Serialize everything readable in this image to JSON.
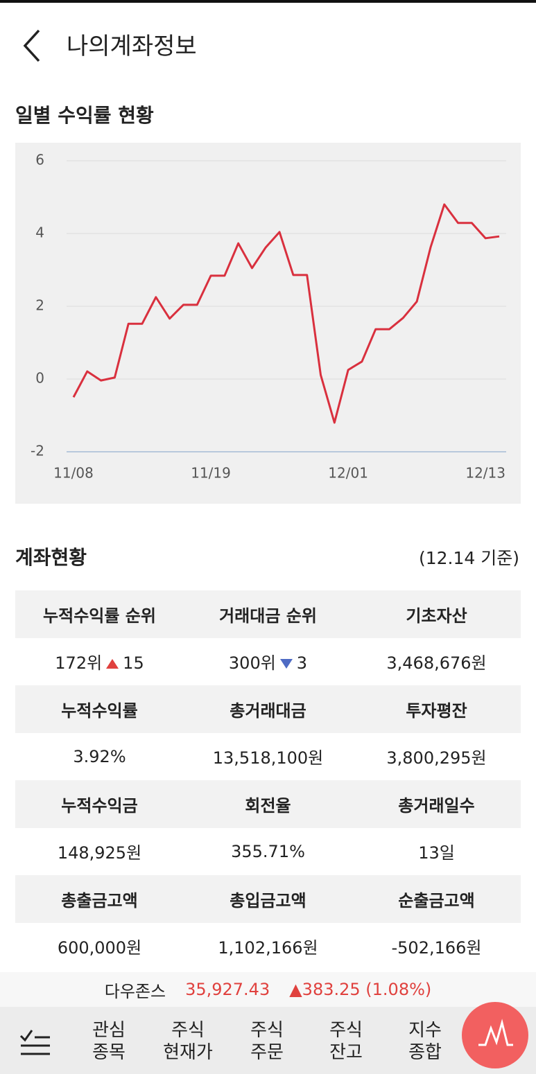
{
  "header": {
    "title": "나의계좌정보"
  },
  "chart_data": {
    "type": "line",
    "title": "일별 수익률 현황",
    "categories": [
      "11/08",
      null,
      null,
      null,
      null,
      null,
      null,
      null,
      null,
      null,
      "11/19",
      null,
      null,
      null,
      null,
      null,
      null,
      null,
      null,
      null,
      "12/01",
      null,
      null,
      null,
      null,
      null,
      null,
      null,
      null,
      null,
      "12/13",
      null
    ],
    "series": [
      {
        "name": null,
        "color": "#d9303e",
        "values": [
          -0.5,
          0.21,
          -0.04,
          0.04,
          1.52,
          1.52,
          2.25,
          1.66,
          2.04,
          2.04,
          2.84,
          2.84,
          3.73,
          3.05,
          3.62,
          4.04,
          2.86,
          2.86,
          0.11,
          -1.2,
          0.25,
          0.48,
          1.37,
          1.37,
          1.68,
          2.13,
          3.62,
          4.8,
          4.29,
          4.29,
          3.87,
          3.92
        ]
      }
    ],
    "ylim": [
      -2,
      6
    ],
    "yticks": [
      -2,
      0,
      2,
      4,
      6
    ],
    "grid": true
  },
  "account": {
    "title": "계좌현황",
    "date": "(12.14 기준)",
    "rows": [
      {
        "headers": [
          "누적수익률 순위",
          "거래대금 순위",
          "기초자산"
        ],
        "values": [
          {
            "rank": "172위",
            "direction": "up",
            "change": "15"
          },
          {
            "rank": "300위",
            "direction": "down",
            "change": "3"
          },
          "3,468,676원"
        ]
      },
      {
        "headers": [
          "누적수익률",
          "총거래대금",
          "투자평잔"
        ],
        "values": [
          "3.92%",
          "13,518,100원",
          "3,800,295원"
        ]
      },
      {
        "headers": [
          "누적수익금",
          "회전율",
          "총거래일수"
        ],
        "values": [
          "148,925원",
          "355.71%",
          "13일"
        ]
      },
      {
        "headers": [
          "총출금고액",
          "총입금고액",
          "순출금고액"
        ],
        "values": [
          "600,000원",
          "1,102,166원",
          "-502,166원"
        ]
      }
    ]
  },
  "ticker": {
    "name": "다우존스",
    "price": "35,927.43",
    "change": "▲383.25 (1.08%)"
  },
  "nav": [
    [
      "관심",
      "종목"
    ],
    [
      "주식",
      "현재가"
    ],
    [
      "주식",
      "주문"
    ],
    [
      "주식",
      "잔고"
    ],
    [
      "지수",
      "종합"
    ]
  ]
}
